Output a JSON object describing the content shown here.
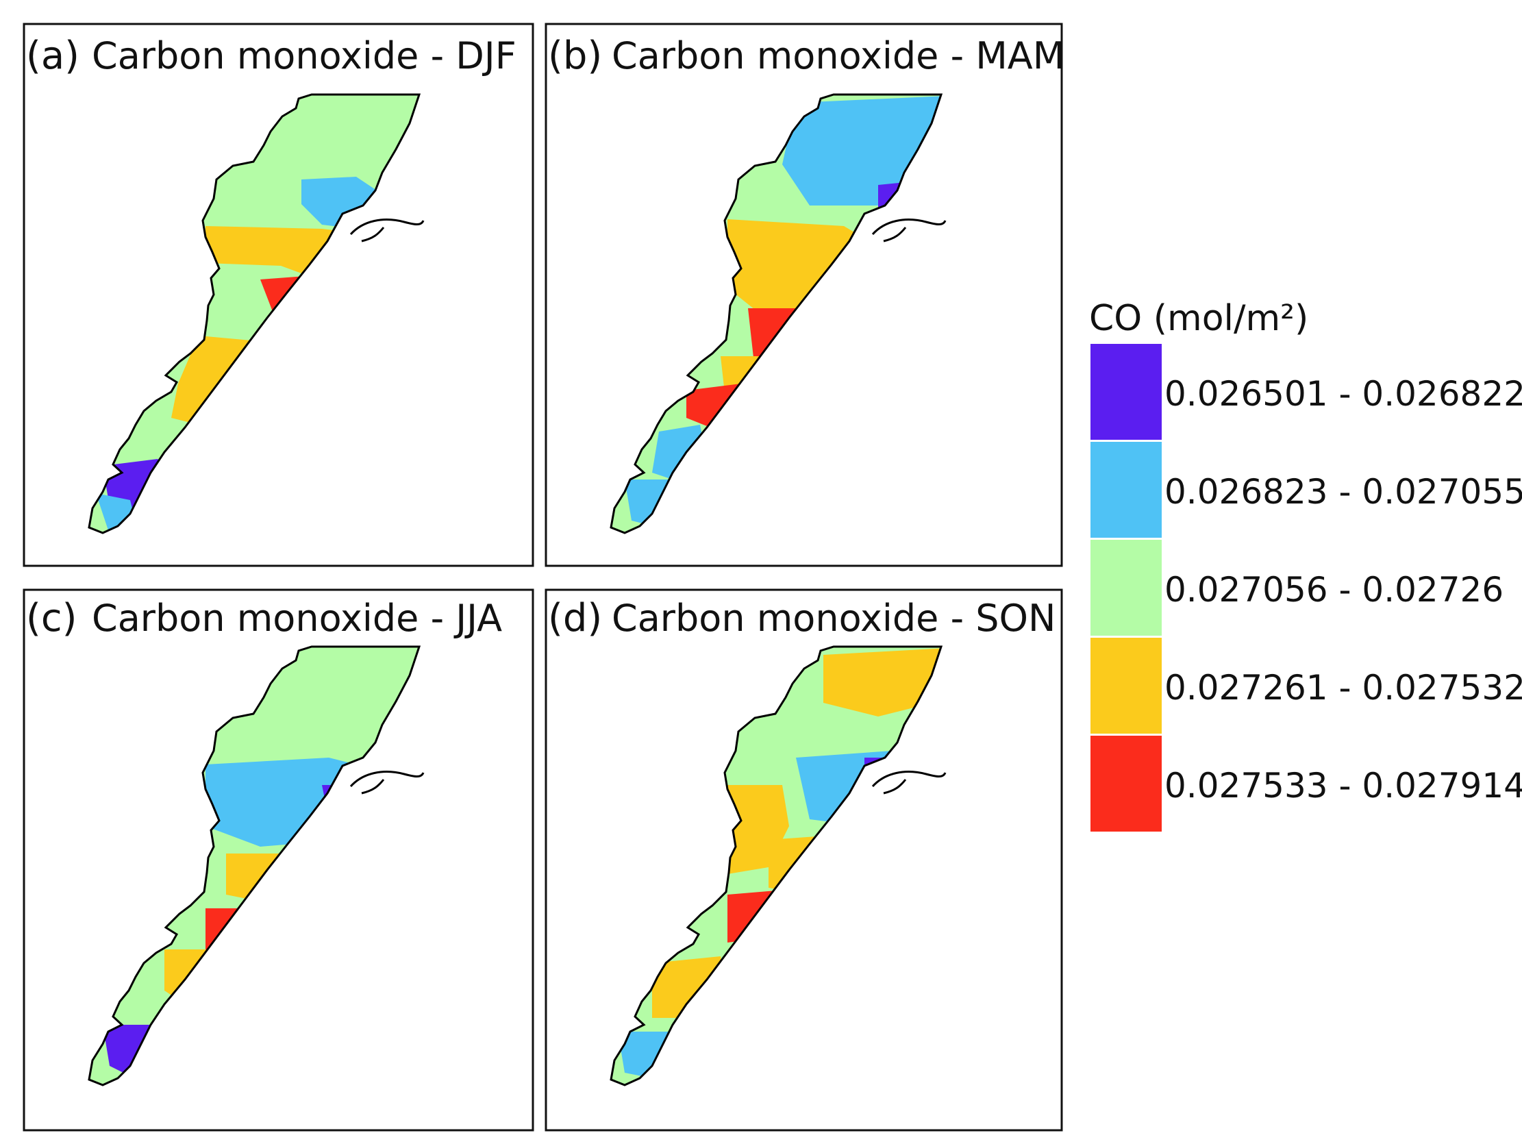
{
  "panels": [
    {
      "letter": "(a)",
      "title": "Carbon monoxide - DJF"
    },
    {
      "letter": "(b)",
      "title": "Carbon monoxide - MAM"
    },
    {
      "letter": "(c)",
      "title": "Carbon monoxide - JJA"
    },
    {
      "letter": "(d)",
      "title": "Carbon monoxide - SON"
    }
  ],
  "legend": {
    "title": "CO (mol/m²)",
    "classes": [
      {
        "label": "0.026501 - 0.026822",
        "color": "#5b1ef0"
      },
      {
        "label": "0.026823 - 0.027055",
        "color": "#4fc2f5"
      },
      {
        "label": "0.027056 - 0.02726",
        "color": "#b4fca6"
      },
      {
        "label": "0.027261 - 0.027532",
        "color": "#fbcb1c"
      },
      {
        "label": "0.027533 - 0.027914",
        "color": "#fb2c1c"
      }
    ]
  },
  "colors": {
    "outline": "#000000",
    "frame": "#111111"
  }
}
